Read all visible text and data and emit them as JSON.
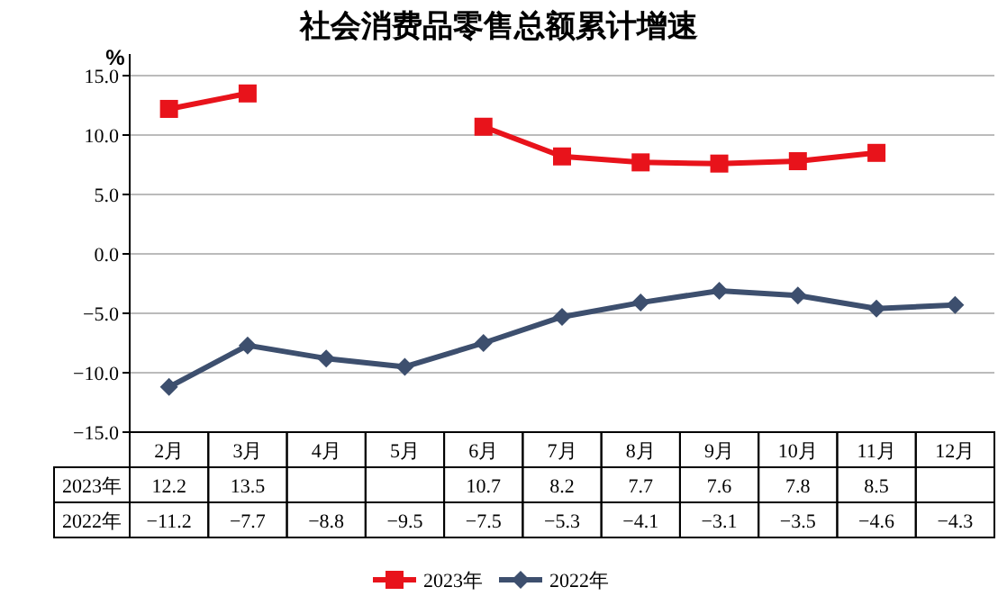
{
  "chart_data": {
    "type": "line",
    "title": "社会消费品零售总额累计增速",
    "ylabel": "%",
    "categories": [
      "2月",
      "3月",
      "4月",
      "5月",
      "6月",
      "7月",
      "8月",
      "9月",
      "10月",
      "11月",
      "12月"
    ],
    "series": [
      {
        "name": "2023年",
        "color": "#e8131b",
        "marker": "square",
        "values": [
          12.2,
          13.5,
          null,
          null,
          10.7,
          8.2,
          7.7,
          7.6,
          7.8,
          8.5,
          null
        ]
      },
      {
        "name": "2022年",
        "color": "#3d4f6e",
        "marker": "diamond",
        "values": [
          -11.2,
          -7.7,
          -8.8,
          -9.5,
          -7.5,
          -5.3,
          -4.1,
          -3.1,
          -3.5,
          -4.6,
          -4.3
        ]
      }
    ],
    "ylim": [
      -15,
      15
    ],
    "yticks": [
      {
        "value": 15,
        "label": "15.0"
      },
      {
        "value": 10,
        "label": "10.0"
      },
      {
        "value": 5,
        "label": "5.0"
      },
      {
        "value": 0,
        "label": "0.0"
      },
      {
        "value": -5,
        "label": "−5.0"
      },
      {
        "value": -10,
        "label": "−10.0"
      },
      {
        "value": -15,
        "label": "−15.0"
      }
    ],
    "grid": "y",
    "legend": "bottom",
    "data_labels": true
  }
}
